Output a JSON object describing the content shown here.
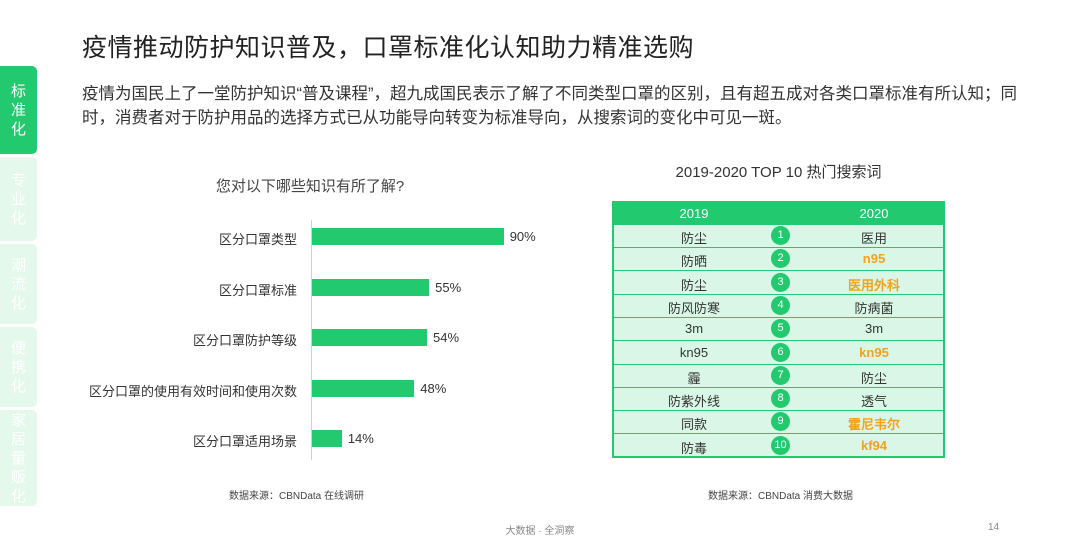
{
  "side_tabs": [
    {
      "label": "标准化",
      "active": true
    },
    {
      "label": "专业化",
      "active": false
    },
    {
      "label": "潮流化",
      "active": false
    },
    {
      "label": "便携化",
      "active": false
    },
    {
      "label": "家居量贩化",
      "active": false
    }
  ],
  "title": "疫情推动防护知识普及，口罩标准化认知助力精准选购",
  "paragraph": "疫情为国民上了一堂防护知识“普及课程”，超九成国民表示了解了不同类型口罩的区别，且有超五成对各类口罩标准有所认知；同时，消费者对于防护用品的选择方式已从功能导向转变为标准导向，从搜索词的变化中可见一斑。",
  "chart_data": {
    "type": "bar",
    "orientation": "horizontal",
    "title": "您对以下哪些知识有所了解?",
    "categories": [
      "区分口罩类型",
      "区分口罩标准",
      "区分口罩防护等级",
      "区分口罩的使用有效时间和使用次数",
      "区分口罩适用场景"
    ],
    "values": [
      90,
      55,
      54,
      48,
      14
    ],
    "value_labels": [
      "90%",
      "55%",
      "54%",
      "48%",
      "14%"
    ],
    "xlim": [
      0,
      100
    ],
    "color": "#22c96f"
  },
  "chart_source": "数据来源：CBNData 在线调研",
  "table": {
    "title": "2019-2020 TOP 10 热门搜索词",
    "headers": [
      "2019",
      "2020"
    ],
    "rows": [
      {
        "rank": "1",
        "y2019": "防尘",
        "y2020": "医用",
        "highlight": false
      },
      {
        "rank": "2",
        "y2019": "防晒",
        "y2020": "n95",
        "highlight": true
      },
      {
        "rank": "3",
        "y2019": "防尘",
        "y2020": "医用外科",
        "highlight": true
      },
      {
        "rank": "4",
        "y2019": "防风防寒",
        "y2020": "防病菌",
        "highlight": false
      },
      {
        "rank": "5",
        "y2019": "3m",
        "y2020": "3m",
        "highlight": false
      },
      {
        "rank": "6",
        "y2019": "kn95",
        "y2020": "kn95",
        "highlight": true
      },
      {
        "rank": "7",
        "y2019": "霾",
        "y2020": "防尘",
        "highlight": false
      },
      {
        "rank": "8",
        "y2019": "防紫外线",
        "y2020": "透气",
        "highlight": false
      },
      {
        "rank": "9",
        "y2019": "同款",
        "y2020": "霍尼韦尔",
        "highlight": true
      },
      {
        "rank": "10",
        "y2019": "防毒",
        "y2020": "kf94",
        "highlight": true
      }
    ],
    "highlight_color": "#f2a31b",
    "accent_color": "#22c96f"
  },
  "table_source": "数据来源：CBNData 消费大数据",
  "footer": "大数据 · 全洞察",
  "page_number": "14"
}
